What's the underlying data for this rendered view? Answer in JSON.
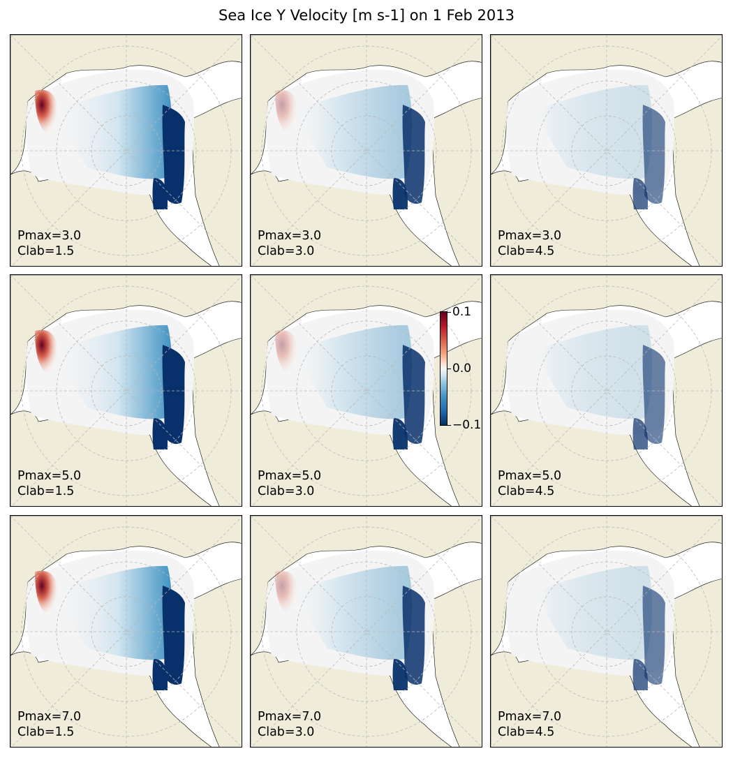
{
  "title": "Sea Ice Y Velocity [m s-1] on 1 Feb 2013",
  "colormap": {
    "name": "RdBu_r",
    "range": [
      -0.1,
      0.1
    ],
    "tick_labels": [
      "0.1",
      "0.0",
      "−0.1"
    ]
  },
  "colors": {
    "land": "#efedda",
    "ice_background": "#f4f4f4",
    "positive_strong": "#67001f",
    "negative_strong": "#08306b",
    "gridline": "#b8b8b8"
  },
  "panels": [
    {
      "pmax": "Pmax=3.0",
      "clab": "Clab=1.5",
      "label": "Pmax=3.0\nClab=1.5",
      "intensity": 1.0
    },
    {
      "pmax": "Pmax=3.0",
      "clab": "Clab=3.0",
      "label": "Pmax=3.0\nClab=3.0",
      "intensity": 0.45
    },
    {
      "pmax": "Pmax=3.0",
      "clab": "Clab=4.5",
      "label": "Pmax=3.0\nClab=4.5",
      "intensity": 0.2
    },
    {
      "pmax": "Pmax=5.0",
      "clab": "Clab=1.5",
      "label": "Pmax=5.0\nClab=1.5",
      "intensity": 1.0
    },
    {
      "pmax": "Pmax=5.0",
      "clab": "Clab=3.0",
      "label": "Pmax=5.0\nClab=3.0",
      "intensity": 0.45
    },
    {
      "pmax": "Pmax=5.0",
      "clab": "Clab=4.5",
      "label": "Pmax=5.0\nClab=4.5",
      "intensity": 0.2
    },
    {
      "pmax": "Pmax=7.0",
      "clab": "Clab=1.5",
      "label": "Pmax=7.0\nClab=1.5",
      "intensity": 1.0
    },
    {
      "pmax": "Pmax=7.0",
      "clab": "Clab=3.0",
      "label": "Pmax=7.0\nClab=3.0",
      "intensity": 0.45
    },
    {
      "pmax": "Pmax=7.0",
      "clab": "Clab=4.5",
      "label": "Pmax=7.0\nClab=4.5",
      "intensity": 0.2
    }
  ]
}
